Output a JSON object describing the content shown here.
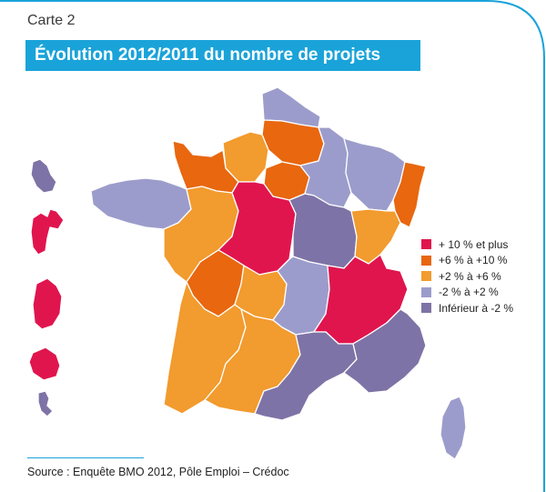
{
  "header": {
    "map_label": "Carte 2",
    "title": "Évolution 2012/2011 du nombre de projets"
  },
  "legend": {
    "items": [
      {
        "label": "+ 10 % et plus",
        "color": "#e0154e"
      },
      {
        "label": "+6 % à +10 %",
        "color": "#e8670f"
      },
      {
        "label": "+2 % à +6 %",
        "color": "#f29b2e"
      },
      {
        "label": "-2 % à +2 %",
        "color": "#9c9ccc"
      },
      {
        "label": "Inférieur à -2 %",
        "color": "#7e73a6"
      }
    ]
  },
  "regions": [
    {
      "id": "nord-pas-de-calais",
      "category": "-2 % à +2 %"
    },
    {
      "id": "picardie",
      "category": "+6 % à +10 %"
    },
    {
      "id": "haute-normandie",
      "category": "+2 % à +6 %"
    },
    {
      "id": "basse-normandie",
      "category": "+6 % à +10 %"
    },
    {
      "id": "ile-de-france",
      "category": "+6 % à +10 %"
    },
    {
      "id": "champagne-ardenne",
      "category": "-2 % à +2 %"
    },
    {
      "id": "lorraine",
      "category": "-2 % à +2 %"
    },
    {
      "id": "alsace",
      "category": "+6 % à +10 %"
    },
    {
      "id": "bretagne",
      "category": "-2 % à +2 %"
    },
    {
      "id": "pays-de-la-loire",
      "category": "+2 % à +6 %"
    },
    {
      "id": "centre",
      "category": "+ 10 % et plus"
    },
    {
      "id": "bourgogne",
      "category": "Inférieur à -2 %"
    },
    {
      "id": "franche-comte",
      "category": "+2 % à +6 %"
    },
    {
      "id": "poitou-charentes",
      "category": "+6 % à +10 %"
    },
    {
      "id": "limousin",
      "category": "+2 % à +6 %"
    },
    {
      "id": "auvergne",
      "category": "-2 % à +2 %"
    },
    {
      "id": "rhone-alpes",
      "category": "+ 10 % et plus"
    },
    {
      "id": "aquitaine",
      "category": "+2 % à +6 %"
    },
    {
      "id": "midi-pyrenees",
      "category": "+2 % à +6 %"
    },
    {
      "id": "languedoc-roussillon",
      "category": "Inférieur à -2 %"
    },
    {
      "id": "paca",
      "category": "Inférieur à -2 %"
    },
    {
      "id": "corse",
      "category": "-2 % à +2 %"
    },
    {
      "id": "guadeloupe",
      "category": "+ 10 % et plus"
    },
    {
      "id": "martinique",
      "category": "Inférieur à -2 %"
    },
    {
      "id": "guyane",
      "category": "+ 10 % et plus"
    },
    {
      "id": "reunion",
      "category": "+ 10 % et plus"
    },
    {
      "id": "mayotte",
      "category": "Inférieur à -2 %"
    }
  ],
  "footer": {
    "source": "Source : Enquête BMO 2012, Pôle Emploi – Crédoc"
  },
  "colors": {
    "accent": "#1aa3d9",
    "frame": "#1aa3d9"
  }
}
